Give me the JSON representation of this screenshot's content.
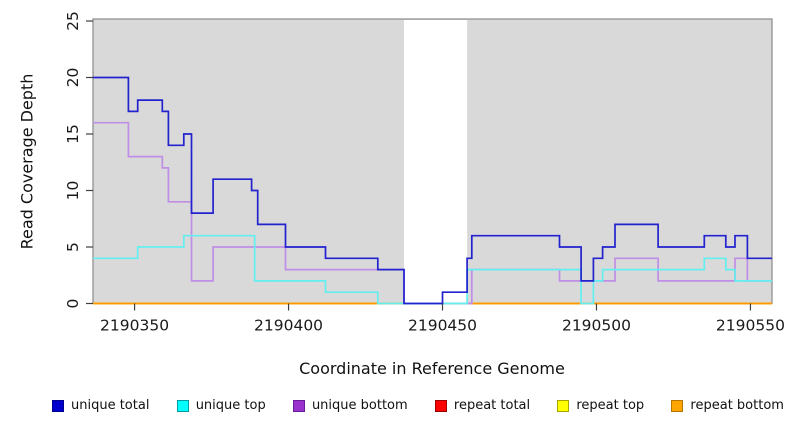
{
  "chart_data": {
    "type": "line",
    "subtype": "step",
    "title": "",
    "xlabel": "Coordinate in Reference Genome",
    "ylabel": "Read Coverage Depth",
    "xlim": [
      2190336.5,
      2190557
    ],
    "ylim": [
      0,
      25
    ],
    "x_ticks": [
      2190350,
      2190400,
      2190450,
      2190500,
      2190550
    ],
    "y_ticks": [
      0,
      5,
      10,
      15,
      20,
      25
    ],
    "grid": false,
    "legend_position": "bottom",
    "plot_background": "#d9d9d9",
    "frame_color": "#8a8a8a",
    "tick_color": "#404040",
    "label_color": "#1a1a1a",
    "gap_region": {
      "x_start": 2190437.5,
      "x_end": 2190458,
      "color": "#ffffff"
    },
    "series": [
      {
        "name": "unique total",
        "line_color": "#2222cf",
        "legend_fill": "#0000cd",
        "legend_border": "#000090",
        "draw_order": 6,
        "steps": [
          [
            2190336.5,
            20
          ],
          [
            2190348,
            17
          ],
          [
            2190351,
            18
          ],
          [
            2190359,
            17
          ],
          [
            2190361,
            14
          ],
          [
            2190366,
            15
          ],
          [
            2190368.5,
            8
          ],
          [
            2190375.5,
            11
          ],
          [
            2190388,
            10
          ],
          [
            2190390,
            7
          ],
          [
            2190399,
            5
          ],
          [
            2190412,
            4
          ],
          [
            2190429,
            3
          ],
          [
            2190437.5,
            0
          ],
          [
            2190450,
            1
          ],
          [
            2190458,
            4
          ],
          [
            2190459.5,
            6
          ],
          [
            2190488,
            5
          ],
          [
            2190495,
            2
          ],
          [
            2190499,
            4
          ],
          [
            2190502,
            5
          ],
          [
            2190506,
            7
          ],
          [
            2190520,
            5
          ],
          [
            2190535,
            6
          ],
          [
            2190542,
            5
          ],
          [
            2190545,
            6
          ],
          [
            2190549,
            4
          ]
        ]
      },
      {
        "name": "unique top",
        "line_color": "#63eef0",
        "legend_fill": "#00ffff",
        "legend_border": "#009aa0",
        "draw_order": 5,
        "steps": [
          [
            2190336.5,
            4
          ],
          [
            2190351,
            5
          ],
          [
            2190366,
            6
          ],
          [
            2190389,
            2
          ],
          [
            2190412,
            1
          ],
          [
            2190429,
            0
          ],
          [
            2190458,
            3
          ],
          [
            2190495,
            0
          ],
          [
            2190499,
            2
          ],
          [
            2190502,
            3
          ],
          [
            2190535,
            4
          ],
          [
            2190542,
            3
          ],
          [
            2190545,
            2
          ]
        ]
      },
      {
        "name": "unique bottom",
        "line_color": "#bf8ee6",
        "legend_fill": "#9932cc",
        "legend_border": "#6a1b9a",
        "draw_order": 4,
        "steps": [
          [
            2190336.5,
            16
          ],
          [
            2190348,
            13
          ],
          [
            2190359,
            12
          ],
          [
            2190361,
            9
          ],
          [
            2190368.5,
            2
          ],
          [
            2190375.5,
            5
          ],
          [
            2190399,
            3
          ],
          [
            2190437.5,
            0
          ],
          [
            2190459.5,
            3
          ],
          [
            2190488,
            2
          ],
          [
            2190506,
            4
          ],
          [
            2190520,
            2
          ],
          [
            2190545,
            4
          ],
          [
            2190549,
            2
          ]
        ]
      },
      {
        "name": "repeat total",
        "line_color": "#cc0000",
        "legend_fill": "#ff0000",
        "legend_border": "#990000",
        "draw_order": 1,
        "steps": [
          [
            2190336.5,
            0
          ]
        ]
      },
      {
        "name": "repeat top",
        "line_color": "#ffff00",
        "legend_fill": "#ffff00",
        "legend_border": "#a8a400",
        "draw_order": 2,
        "steps": [
          [
            2190336.5,
            0
          ]
        ]
      },
      {
        "name": "repeat bottom",
        "line_color": "#ff9800",
        "legend_fill": "#ffa500",
        "legend_border": "#b87400",
        "draw_order": 3,
        "steps": [
          [
            2190336.5,
            0
          ]
        ]
      }
    ]
  }
}
